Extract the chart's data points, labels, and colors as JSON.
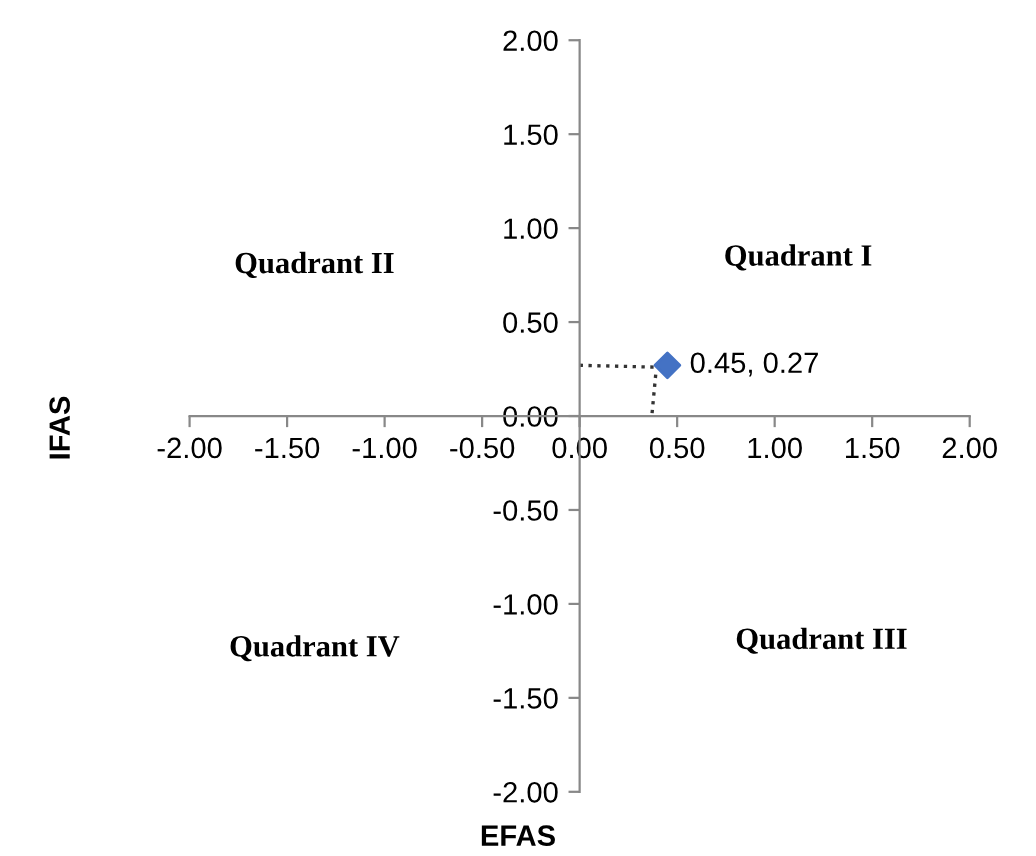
{
  "chart_data": {
    "type": "scatter",
    "xlabel": "EFAS",
    "ylabel": "IFAS",
    "x": [
      0.45
    ],
    "series": [
      {
        "color": "#4472c4",
        "values": [
          0.27
        ],
        "value_labels": [
          "0.45, 0.27"
        ]
      }
    ],
    "marker": "diamond",
    "grid": false,
    "xlim": [
      -2,
      2
    ],
    "ylim": [
      -2,
      2
    ],
    "xticks": [
      {
        "value": -2,
        "label": "-2.00"
      },
      {
        "value": -1.5,
        "label": "-1.50"
      },
      {
        "value": -1,
        "label": "-1.00"
      },
      {
        "value": -0.5,
        "label": "-0.50"
      },
      {
        "value": 0,
        "label": "0.00"
      },
      {
        "value": 0.5,
        "label": "0.50"
      },
      {
        "value": 1,
        "label": "1.00"
      },
      {
        "value": 1.5,
        "label": "1.50"
      },
      {
        "value": 2,
        "label": "2.00"
      }
    ],
    "yticks": [
      {
        "value": -2,
        "label": "-2.00"
      },
      {
        "value": -1.5,
        "label": "-1.50"
      },
      {
        "value": -1,
        "label": "-1.00"
      },
      {
        "value": -0.5,
        "label": "-0.50"
      },
      {
        "value": 0,
        "label": "0.00"
      },
      {
        "value": 0.5,
        "label": "0.50"
      },
      {
        "value": 1,
        "label": "1.00"
      },
      {
        "value": 1.5,
        "label": "1.50"
      },
      {
        "value": 2,
        "label": "2.00"
      }
    ],
    "annotations": [
      "Quadrant II",
      "Quadrant I",
      "Quadrant IV",
      "Quadrant III"
    ]
  }
}
